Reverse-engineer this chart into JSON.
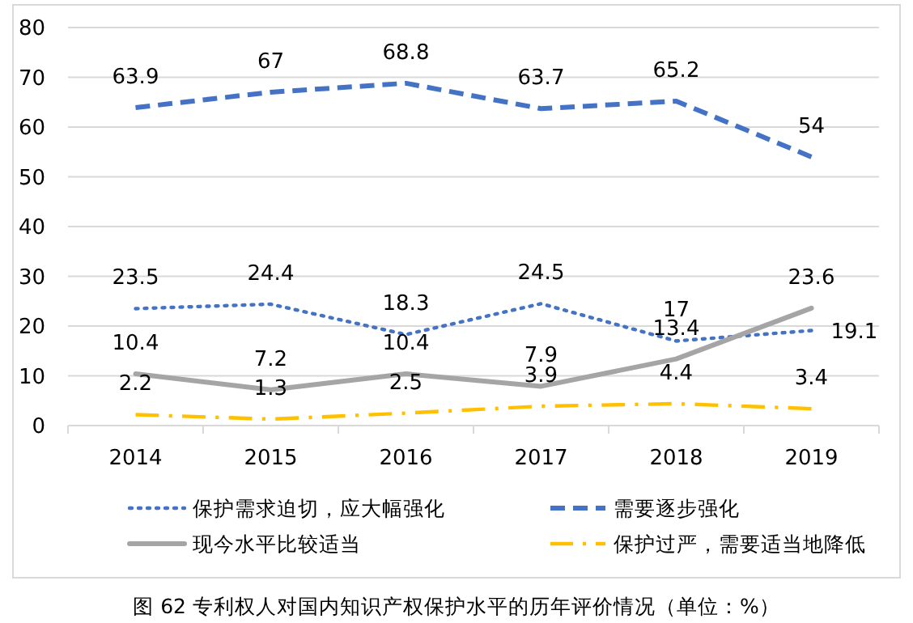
{
  "chart_data": {
    "type": "line",
    "title": "图 62 专利权人对国内知识产权保护水平的历年评价情况（单位：%）",
    "categories": [
      "2014",
      "2015",
      "2016",
      "2017",
      "2018",
      "2019"
    ],
    "series": [
      {
        "name": "保护需求迫切，应大幅强化",
        "color": "#4472c4",
        "line_style": "dotted",
        "values": [
          23.5,
          24.4,
          18.3,
          24.5,
          17,
          19.1
        ]
      },
      {
        "name": "需要逐步强化",
        "color": "#4472c4",
        "line_style": "dashed",
        "values": [
          63.9,
          67,
          68.8,
          63.7,
          65.2,
          54
        ]
      },
      {
        "name": "现今水平比较适当",
        "color": "#a5a5a5",
        "line_style": "solid",
        "values": [
          10.4,
          7.2,
          10.4,
          7.9,
          13.4,
          23.6
        ]
      },
      {
        "name": "保护过严，需要适当地降低",
        "color": "#ffc000",
        "line_style": "dashdot",
        "values": [
          2.2,
          1.3,
          2.5,
          3.9,
          4.4,
          3.4
        ]
      }
    ],
    "ylim": [
      0,
      80
    ],
    "yticks": [
      0,
      10,
      20,
      30,
      40,
      50,
      60,
      70,
      80
    ],
    "grid": "y",
    "legend": "bottom",
    "data_labels": true,
    "marker": "none"
  }
}
